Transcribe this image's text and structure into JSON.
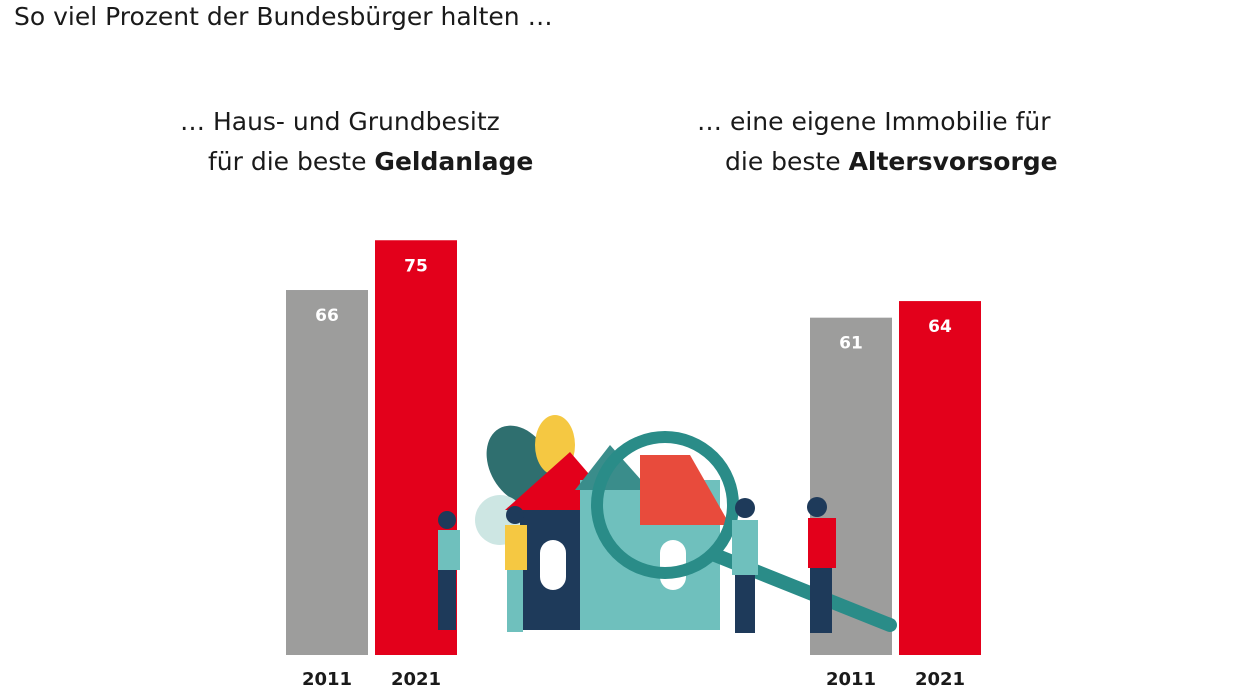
{
  "title": "So viel Prozent der Bundesbürger halten …",
  "chart_data": [
    {
      "type": "bar",
      "subtitle_line1": "… Haus- und Grundbesitz",
      "subtitle_line2_prefix": "für die beste ",
      "subtitle_line2_bold": "Geldanlage",
      "categories": [
        "2011",
        "2021"
      ],
      "values": [
        66,
        75
      ],
      "colors": [
        "#9d9d9c",
        "#e3001b"
      ],
      "unit": "%"
    },
    {
      "type": "bar",
      "subtitle_line1": "… eine eigene Immobilie für",
      "subtitle_line2_prefix": "die beste ",
      "subtitle_line2_bold": "Altersvorsorge",
      "categories": [
        "2011",
        "2021"
      ],
      "values": [
        61,
        64
      ],
      "colors": [
        "#9d9d9c",
        "#e3001b"
      ],
      "unit": "%"
    }
  ],
  "illustration": "house-with-magnifying-glass-and-people-icon"
}
